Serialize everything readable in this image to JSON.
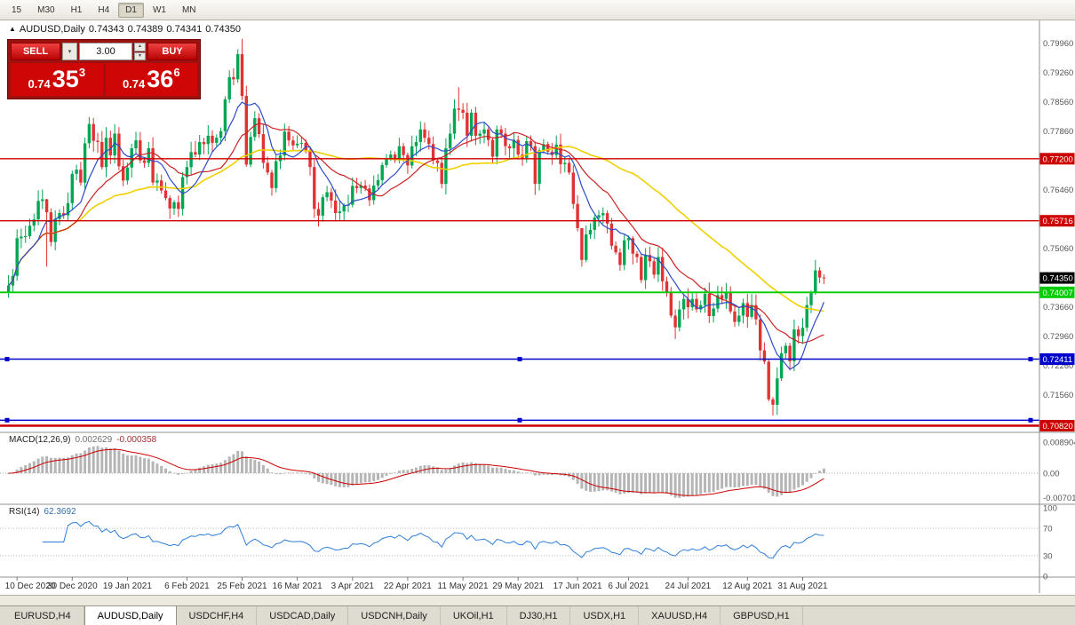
{
  "toolbar": {
    "timeframes": [
      "15",
      "M30",
      "H1",
      "H4",
      "D1",
      "W1",
      "MN"
    ],
    "active": "D1"
  },
  "chart_header": {
    "arrow": "▲",
    "symbol": "AUDUSD,Daily",
    "open": "0.74343",
    "high": "0.74389",
    "low": "0.74341",
    "close": "0.74350"
  },
  "trade_panel": {
    "sell_label": "SELL",
    "buy_label": "BUY",
    "volume": "3.00",
    "sell_price": {
      "base": "0.74",
      "main": "35",
      "pip": "3"
    },
    "buy_price": {
      "base": "0.74",
      "main": "36",
      "pip": "6"
    }
  },
  "price_axis": {
    "labels": [
      "0.79960",
      "0.79260",
      "0.78560",
      "0.77860",
      "0.76460",
      "0.75060",
      "0.73660",
      "0.72960",
      "0.72260",
      "0.71560"
    ]
  },
  "current_price": {
    "value": "0.74350",
    "bg": "#000000"
  },
  "hlines": [
    {
      "price": 0.772,
      "label": "0.77200",
      "color": "#cc0000",
      "width": 1.3,
      "handles": false
    },
    {
      "price": 0.75716,
      "label": "0.75716",
      "color": "#cc0000",
      "width": 1.3,
      "handles": false
    },
    {
      "price": 0.74007,
      "label": "0.74007",
      "color": "#00cc00",
      "width": 1.8,
      "handles": false
    },
    {
      "price": 0.72411,
      "label": "0.72411",
      "color": "#0000cc",
      "width": 1.6,
      "handles": true
    },
    {
      "price": 0.7095,
      "label": "",
      "color": "#0000cc",
      "width": 1.4,
      "handles": true
    },
    {
      "price": 0.7082,
      "label": "0.70820",
      "color": "#cc0000",
      "width": 2.6,
      "handles": false
    }
  ],
  "indicators": {
    "macd": {
      "name": "MACD(12,26,9)",
      "main": "0.002629",
      "signal": "-0.000358",
      "axis": [
        "0.008904",
        "0.00",
        "-0.007010"
      ],
      "colors": {
        "hist": "#b5b5b5",
        "signal": "#cc0000"
      }
    },
    "rsi": {
      "name": "RSI(14)",
      "value": "62.3692",
      "axis": [
        "100",
        "70",
        "30",
        "0"
      ],
      "levels": [
        70,
        30
      ],
      "color": "#2f7ed8"
    }
  },
  "tabs": {
    "active_index": 1,
    "items": [
      "EURUSD,H4",
      "AUDUSD,Daily",
      "USDCHF,H4",
      "USDCAD,Daily",
      "USDCNH,Daily",
      "UKOil,H1",
      "DJ30,H1",
      "USDX,H1",
      "XAUUSD,H4",
      "GBPUSD,H1"
    ]
  },
  "chart_data": {
    "type": "candlestick",
    "title": "AUDUSD Daily",
    "symbol": "AUDUSD",
    "timeframe": "Daily",
    "ylim": [
      0.7066,
      0.804
    ],
    "first_open": 0.74,
    "colors": {
      "up": "#00a651",
      "down": "#e03333"
    },
    "mas": [
      {
        "period": 45,
        "color": "#f0d000",
        "width": 1.6
      },
      {
        "period": 17,
        "color": "#cc2222",
        "width": 1.2
      },
      {
        "period": 8,
        "color": "#2b4bc8",
        "width": 1.2
      }
    ],
    "closes": [
      0.7417,
      0.744,
      0.753,
      0.7534,
      0.7535,
      0.756,
      0.7575,
      0.7619,
      0.7623,
      0.7592,
      0.7521,
      0.7576,
      0.759,
      0.7585,
      0.7614,
      0.7684,
      0.7694,
      0.7663,
      0.7757,
      0.7803,
      0.7763,
      0.776,
      0.77,
      0.777,
      0.7728,
      0.778,
      0.7702,
      0.7668,
      0.7699,
      0.7745,
      0.7764,
      0.7716,
      0.771,
      0.7745,
      0.7663,
      0.7668,
      0.7644,
      0.7626,
      0.7601,
      0.7616,
      0.76,
      0.7676,
      0.77,
      0.7736,
      0.773,
      0.776,
      0.7755,
      0.7775,
      0.7758,
      0.777,
      0.7786,
      0.7862,
      0.7915,
      0.791,
      0.797,
      0.787,
      0.7706,
      0.7772,
      0.7817,
      0.7779,
      0.771,
      0.7687,
      0.765,
      0.7714,
      0.7728,
      0.7785,
      0.7764,
      0.7752,
      0.7756,
      0.7758,
      0.7738,
      0.77,
      0.76,
      0.7584,
      0.7628,
      0.764,
      0.762,
      0.759,
      0.7594,
      0.7608,
      0.761,
      0.7655,
      0.765,
      0.7656,
      0.7649,
      0.7621,
      0.7656,
      0.7669,
      0.7705,
      0.772,
      0.773,
      0.7716,
      0.775,
      0.7729,
      0.7704,
      0.775,
      0.776,
      0.779,
      0.777,
      0.7755,
      0.7716,
      0.771,
      0.766,
      0.7745,
      0.778,
      0.784,
      0.7837,
      0.783,
      0.7775,
      0.783,
      0.7775,
      0.778,
      0.779,
      0.7765,
      0.7725,
      0.779,
      0.778,
      0.775,
      0.7745,
      0.7765,
      0.773,
      0.7722,
      0.7762,
      0.775,
      0.766,
      0.774,
      0.7755,
      0.7737,
      0.7729,
      0.7754,
      0.7707,
      0.771,
      0.7687,
      0.7612,
      0.7554,
      0.7478,
      0.7539,
      0.755,
      0.7579,
      0.7585,
      0.759,
      0.7565,
      0.7512,
      0.7496,
      0.7466,
      0.7525,
      0.753,
      0.7493,
      0.7485,
      0.743,
      0.749,
      0.7475,
      0.7443,
      0.7485,
      0.7427,
      0.74,
      0.7345,
      0.7317,
      0.736,
      0.7385,
      0.7365,
      0.7385,
      0.736,
      0.737,
      0.7397,
      0.7344,
      0.7362,
      0.7394,
      0.7385,
      0.74,
      0.7355,
      0.733,
      0.7345,
      0.7375,
      0.7342,
      0.737,
      0.7336,
      0.7262,
      0.7235,
      0.7145,
      0.7132,
      0.7195,
      0.7255,
      0.7273,
      0.7236,
      0.7312,
      0.7296,
      0.7316,
      0.737,
      0.74,
      0.7453,
      0.7436,
      0.7435
    ],
    "wicks": {
      "9": [
        0.7624,
        0.7462
      ],
      "19": [
        0.782,
        0.7745
      ],
      "55": [
        0.8007,
        0.786
      ],
      "106": [
        0.7891,
        0.781
      ],
      "135": [
        0.7545,
        0.7462
      ],
      "157": [
        0.736,
        0.7289
      ],
      "179": [
        0.724,
        0.714
      ],
      "180": [
        0.715,
        0.7106
      ],
      "190": [
        0.7478,
        0.7395
      ]
    },
    "ticks": [
      [
        2,
        "10 Dec 2020"
      ],
      [
        15,
        "30 Dec 2020"
      ],
      [
        28,
        "19 Jan 2021"
      ],
      [
        42,
        "6 Feb 2021"
      ],
      [
        55,
        "25 Feb 2021"
      ],
      [
        68,
        "16 Mar 2021"
      ],
      [
        81,
        "3 Apr 2021"
      ],
      [
        94,
        "22 Apr 2021"
      ],
      [
        107,
        "11 May 2021"
      ],
      [
        120,
        "29 May 2021"
      ],
      [
        134,
        "17 Jun 2021"
      ],
      [
        146,
        "6 Jul 2021"
      ],
      [
        160,
        "24 Jul 2021"
      ],
      [
        174,
        "12 Aug 2021"
      ],
      [
        187,
        "31 Aug 2021"
      ]
    ]
  }
}
